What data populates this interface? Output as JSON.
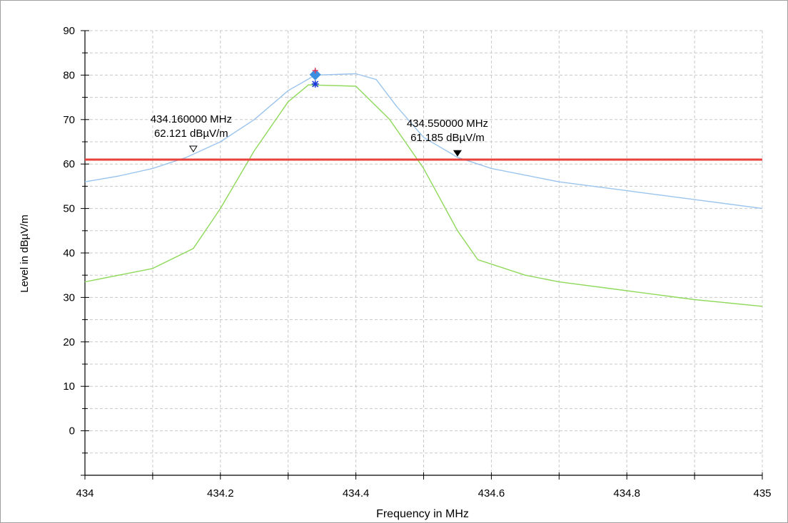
{
  "chart_data": {
    "type": "line",
    "title": "",
    "xlabel": "Frequency in MHz",
    "ylabel": "Level in dBµV/m",
    "xlim": [
      434,
      435
    ],
    "ylim": [
      -10,
      90
    ],
    "x_ticks": [
      "434",
      "434.2",
      "434.4",
      "434.6",
      "434.8",
      "435"
    ],
    "y_ticks": [
      "0",
      "10",
      "20",
      "30",
      "40",
      "50",
      "60",
      "70",
      "80",
      "90"
    ],
    "grid": true,
    "limit_line": {
      "y": 61,
      "color": "#e8403a"
    },
    "series": [
      {
        "color": "#9ac4ee",
        "points": [
          [
            434.0,
            56.0
          ],
          [
            434.05,
            57.3
          ],
          [
            434.1,
            59.0
          ],
          [
            434.15,
            61.5
          ],
          [
            434.2,
            65.0
          ],
          [
            434.25,
            70.0
          ],
          [
            434.3,
            76.5
          ],
          [
            434.34,
            80.0
          ],
          [
            434.4,
            80.3
          ],
          [
            434.43,
            79.0
          ],
          [
            434.46,
            73.0
          ],
          [
            434.5,
            66.0
          ],
          [
            434.55,
            61.5
          ],
          [
            434.6,
            59.0
          ],
          [
            434.7,
            56.0
          ],
          [
            434.8,
            54.0
          ],
          [
            434.9,
            52.0
          ],
          [
            435.0,
            50.0
          ]
        ]
      },
      {
        "color": "#8fd95a",
        "points": [
          [
            434.0,
            33.5
          ],
          [
            434.1,
            36.5
          ],
          [
            434.16,
            41.0
          ],
          [
            434.2,
            50.0
          ],
          [
            434.25,
            63.0
          ],
          [
            434.3,
            74.0
          ],
          [
            434.33,
            77.8
          ],
          [
            434.4,
            77.5
          ],
          [
            434.45,
            70.0
          ],
          [
            434.5,
            59.0
          ],
          [
            434.55,
            45.0
          ],
          [
            434.58,
            38.5
          ],
          [
            434.65,
            35.0
          ],
          [
            434.7,
            33.5
          ],
          [
            434.8,
            31.5
          ],
          [
            434.9,
            29.5
          ],
          [
            435.0,
            28.0
          ]
        ]
      }
    ],
    "peak_markers": [
      {
        "x": 434.34,
        "y": 80.1,
        "shape": "diamond",
        "color": "#3a8fe0"
      },
      {
        "x": 434.34,
        "y": 81.0,
        "shape": "plus",
        "color": "#e03a5a"
      },
      {
        "x": 434.34,
        "y": 78.0,
        "shape": "star",
        "color": "#1a3ad8"
      }
    ],
    "annotations": [
      {
        "id": "left",
        "freq_label": "434.160000 MHz",
        "level_label": "62.121 dBµV/m",
        "x": 434.16,
        "y": 62.121,
        "marker": "open-triangle"
      },
      {
        "id": "right",
        "freq_label": "434.550000 MHz",
        "level_label": "61.185 dBµV/m",
        "x": 434.55,
        "y": 61.185,
        "marker": "filled-triangle"
      }
    ]
  }
}
